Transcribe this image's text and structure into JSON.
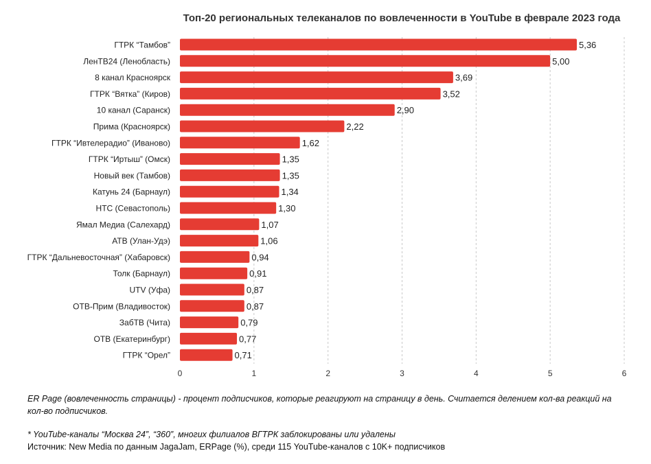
{
  "chart_data": {
    "type": "bar",
    "orientation": "horizontal",
    "title": "Топ-20 региональных телеканалов по вовлеченности в YouTube в феврале 2023 года",
    "categories": [
      "ГТРК “Тамбов”",
      "ЛенТВ24 (Ленобласть)",
      "8 канал Красноярск",
      "ГТРК “Вятка” (Киров)",
      "10 канал (Саранск)",
      "Прима (Красноярск)",
      "ГТРК “Ивтелерадио” (Иваново)",
      "ГТРК “Иртыш” (Омск)",
      "Новый век (Тамбов)",
      "Катунь 24 (Барнаул)",
      "НТС (Севастополь)",
      "Ямал Медиа (Салехард)",
      "АТВ (Улан-Удэ)",
      "ГТРК “Дальневосточная” (Хабаровск)",
      "Толк (Барнаул)",
      "UTV (Уфа)",
      "ОТВ-Прим (Владивосток)",
      "ЗабТВ (Чита)",
      "ОТВ (Екатеринбург)",
      "ГТРК “Орел”"
    ],
    "values": [
      5.36,
      5.0,
      3.69,
      3.52,
      2.9,
      2.22,
      1.62,
      1.35,
      1.35,
      1.34,
      1.3,
      1.07,
      1.06,
      0.94,
      0.91,
      0.87,
      0.87,
      0.79,
      0.77,
      0.71
    ],
    "value_labels": [
      "5,36",
      "5,00",
      "3,69",
      "3,52",
      "2,90",
      "2,22",
      "1,62",
      "1,35",
      "1,35",
      "1,34",
      "1,30",
      "1,07",
      "1,06",
      "0,94",
      "0,91",
      "0,87",
      "0,87",
      "0,79",
      "0,77",
      "0,71"
    ],
    "x_ticks": [
      "0",
      "1",
      "2",
      "3",
      "4",
      "5",
      "6"
    ],
    "xlim": [
      0,
      6
    ],
    "grid": "vertical dashed",
    "bar_color": "#e53c33",
    "legend": "none"
  },
  "notes": {
    "er_definition": "ER Page (вовлеченность страницы) - процент подписчиков, которые реагируют на страницу в день. Считается делением кол-ва реакций на кол-во подписчиков.",
    "blocked": "* YouTube-каналы “Москва 24”, “360”, многих филиалов ВГТРК заблокированы или удалены",
    "source": "Источник: New Media по данным JagaJam, ERPage (%), среди 115 YouTube-каналов с 10K+ подписчиков"
  }
}
